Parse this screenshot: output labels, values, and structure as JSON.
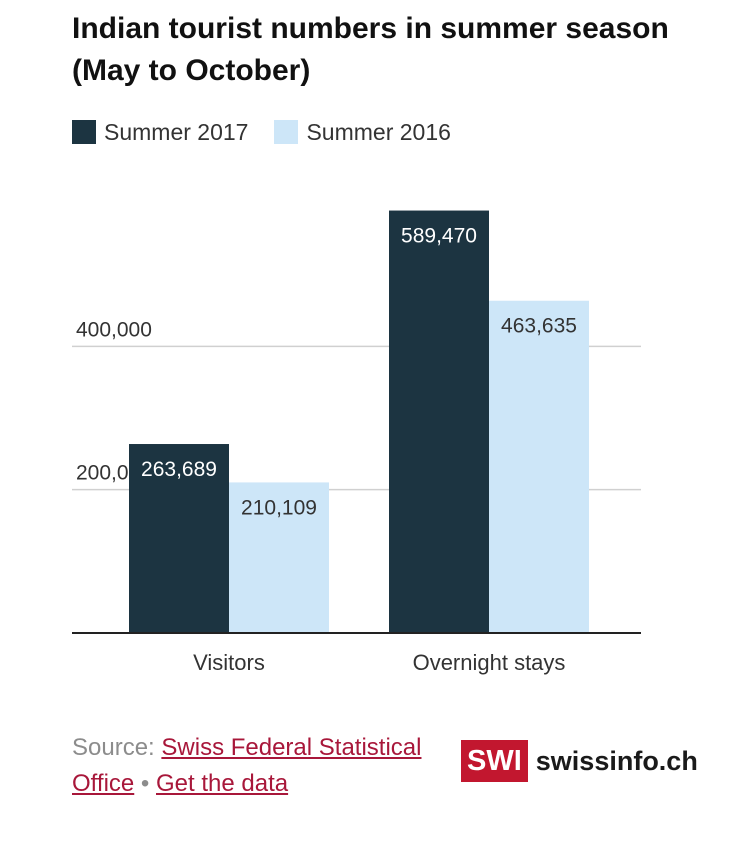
{
  "chart_data": {
    "type": "bar",
    "title": "Indian tourist numbers in summer season (May to October)",
    "categories": [
      "Visitors",
      "Overnight stays"
    ],
    "series": [
      {
        "name": "Summer 2017",
        "values": [
          263689,
          589470
        ],
        "color": "#1c3441"
      },
      {
        "name": "Summer 2016",
        "values": [
          210109,
          463635
        ],
        "color": "#cde6f8"
      }
    ],
    "data_labels": [
      [
        "263,689",
        "589,470"
      ],
      [
        "210,109",
        "463,635"
      ]
    ],
    "yticks": [
      200000,
      400000
    ],
    "ytick_labels": [
      "200,000",
      "400,000"
    ],
    "ylim": [
      0,
      600000
    ],
    "grid": true,
    "legend_position": "top-left"
  },
  "source": {
    "prefix": "Source:",
    "link_text": "Swiss Federal Statistical Office",
    "separator": "•",
    "data_link_text": "Get the data"
  },
  "logo": {
    "box_text": "SWI",
    "site_text": "swissinfo.ch"
  },
  "colors": {
    "dark_bar": "#1c3441",
    "light_bar": "#cde6f8",
    "grid": "#d0d0d0",
    "axis": "#222222",
    "brand_red": "#c2172f",
    "link": "#a8173a"
  }
}
